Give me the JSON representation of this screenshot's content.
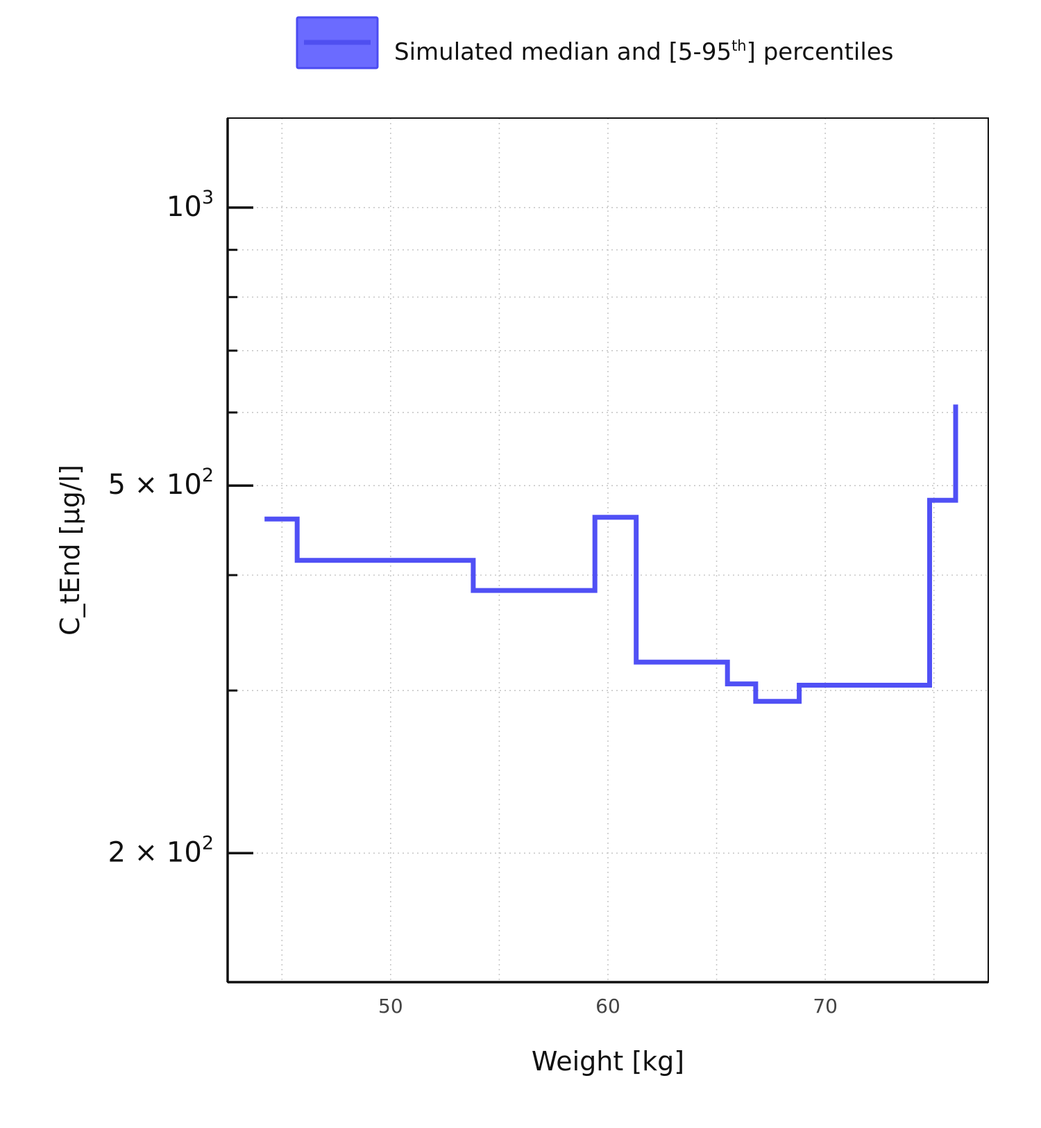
{
  "legend": {
    "label_main": "Simulated median and [5-95",
    "label_sup": "th",
    "label_end": "] percentiles",
    "fill_color": "#6b6bff",
    "border_color": "#4b4bf2",
    "line_color": "#4f4ff0"
  },
  "colors": {
    "series": "#5050f5",
    "axis": "#111111",
    "grid": "#c8c8c8"
  },
  "chart_data": {
    "type": "line",
    "step": "post",
    "xlabel": "Weight [kg]",
    "ylabel": "C_tEnd [µg/l]",
    "xlim": [
      42.5,
      77.5
    ],
    "ylim": [
      145,
      1250
    ],
    "yscale": "log",
    "grid": true,
    "legend_position": "top",
    "x_ticks": [
      {
        "value": 50,
        "label": "50"
      },
      {
        "value": 60,
        "label": "60"
      },
      {
        "value": 70,
        "label": "70"
      }
    ],
    "x_minor_ticks": [
      45,
      55,
      65,
      75
    ],
    "y_ticks": [
      {
        "value": 1000,
        "base": "10",
        "exp": "3"
      },
      {
        "value": 500,
        "base": "5 × 10",
        "exp": "2"
      },
      {
        "value": 200,
        "base": "2 × 10",
        "exp": "2"
      }
    ],
    "y_minor_ticks": [
      900,
      800,
      700,
      600,
      400,
      300
    ],
    "series": [
      {
        "name": "Simulated median and [5-95th] percentiles",
        "x": [
          44.2,
          45.7,
          53.8,
          59.4,
          61.3,
          62.8,
          65.5,
          66.8,
          68.8,
          71.8,
          74.8,
          76.0
        ],
        "y": [
          460,
          415,
          385,
          462,
          322,
          322,
          305,
          292,
          304,
          304,
          482,
          612
        ]
      }
    ]
  }
}
